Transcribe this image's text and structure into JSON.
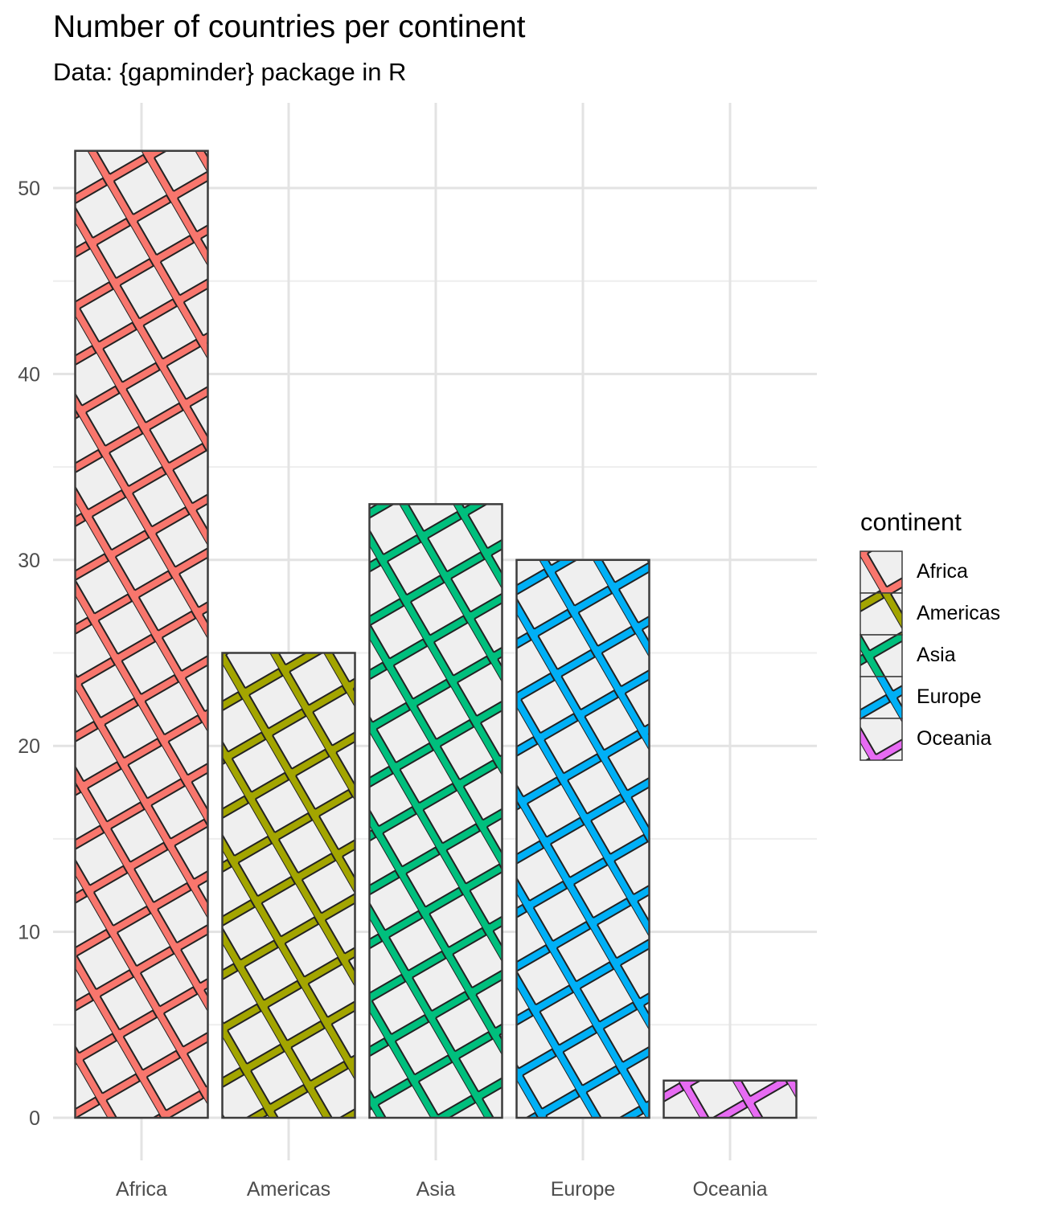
{
  "chart_data": {
    "type": "bar",
    "title": "Number of countries per continent",
    "subtitle": "Data: {gapminder} package in R",
    "xlabel": "",
    "ylabel": "",
    "categories": [
      "Africa",
      "Americas",
      "Asia",
      "Europe",
      "Oceania"
    ],
    "values": [
      52,
      25,
      33,
      30,
      2
    ],
    "ylim": [
      0,
      54
    ],
    "yticks": [
      0,
      10,
      20,
      30,
      40,
      50
    ],
    "grid": true,
    "fill_pattern": "crosshatch",
    "background_fill": "#efefef",
    "colors": [
      "#F8766D",
      "#A3A500",
      "#00BF7D",
      "#00B0F6",
      "#E76BF3"
    ],
    "legend": {
      "title": "continent",
      "placement": "right",
      "entries": [
        "Africa",
        "Americas",
        "Asia",
        "Europe",
        "Oceania"
      ]
    }
  }
}
